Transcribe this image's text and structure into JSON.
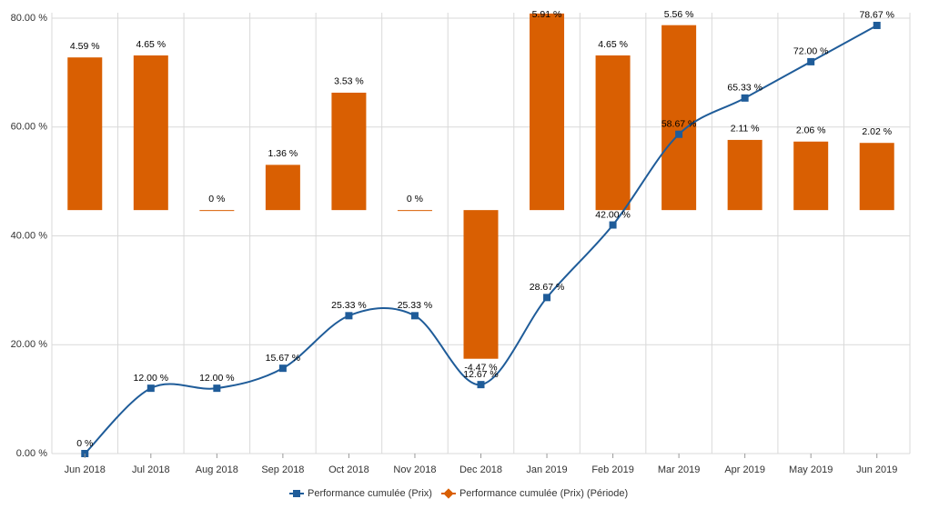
{
  "chart_data": {
    "type": "bar-line",
    "categories": [
      "Jun 2018",
      "Jul 2018",
      "Aug 2018",
      "Sep 2018",
      "Oct 2018",
      "Nov 2018",
      "Dec 2018",
      "Jan 2019",
      "Feb 2019",
      "Mar 2019",
      "Apr 2019",
      "May 2019",
      "Jun 2019"
    ],
    "series": [
      {
        "name": "Performance cumulée (Prix)",
        "type": "line",
        "color": "#1f5c99",
        "values": [
          0,
          12,
          12,
          15.67,
          25.33,
          25.33,
          12.67,
          28.67,
          42,
          58.67,
          65.33,
          72,
          78.67
        ],
        "value_labels": [
          "0 %",
          "12.00 %",
          "12.00 %",
          "15.67 %",
          "25.33 %",
          "25.33 %",
          "12.67 %",
          "28.67 %",
          "42.00 %",
          "58.67 %",
          "65.33 %",
          "72.00 %",
          "78.67 %"
        ]
      },
      {
        "name": "Performance cumulée (Prix) (Période)",
        "type": "bar",
        "axis": "y2",
        "color": "#d95f02",
        "values": [
          4.59,
          4.65,
          0,
          1.36,
          3.53,
          0,
          -4.47,
          5.91,
          4.65,
          5.56,
          2.11,
          2.06,
          2.02
        ],
        "value_labels": [
          "4.59 %",
          "4.65 %",
          "0 %",
          "1.36 %",
          "3.53 %",
          "0 %",
          "-4.47 %",
          "5.91 %",
          "4.65 %",
          "5.56 %",
          "2.11 %",
          "2.06 %",
          "2.02 %"
        ]
      }
    ],
    "ylim": [
      0,
      80
    ],
    "yticks": [
      {
        "value": 0,
        "label": "0.00 %"
      },
      {
        "value": 20,
        "label": "20.00 %"
      },
      {
        "value": 40,
        "label": "40.00 %"
      },
      {
        "value": 60,
        "label": "60.00 %"
      },
      {
        "value": 80,
        "label": "80.00 %"
      }
    ],
    "y2lim": [
      -7.32,
      5.77
    ],
    "grid": true,
    "legend": "bottom"
  }
}
